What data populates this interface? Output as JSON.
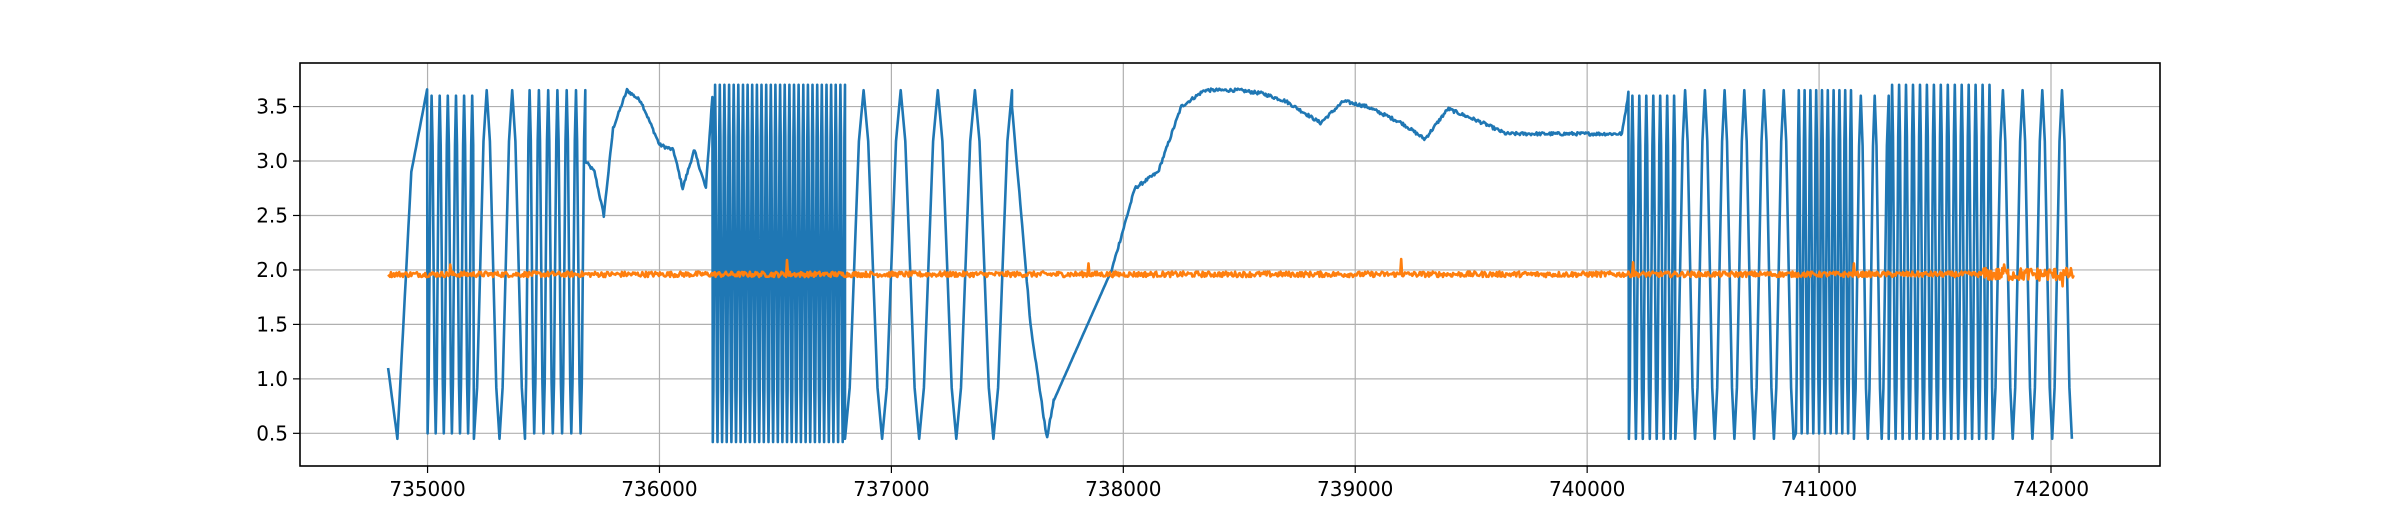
{
  "chart_data": {
    "type": "line",
    "title": "",
    "xlabel": "",
    "ylabel": "",
    "xlim": [
      734450,
      742470
    ],
    "ylim": [
      0.2,
      3.9
    ],
    "grid": true,
    "legend": "none",
    "x_ticks": [
      {
        "value": 735000,
        "label": "735000"
      },
      {
        "value": 736000,
        "label": "736000"
      },
      {
        "value": 737000,
        "label": "737000"
      },
      {
        "value": 738000,
        "label": "738000"
      },
      {
        "value": 739000,
        "label": "739000"
      },
      {
        "value": 740000,
        "label": "740000"
      },
      {
        "value": 741000,
        "label": "741000"
      },
      {
        "value": 742000,
        "label": "742000"
      }
    ],
    "y_ticks": [
      {
        "value": 0.5,
        "label": "0.5"
      },
      {
        "value": 1.0,
        "label": "1.0"
      },
      {
        "value": 1.5,
        "label": "1.5"
      },
      {
        "value": 2.0,
        "label": "2.0"
      },
      {
        "value": 2.5,
        "label": "2.5"
      },
      {
        "value": 3.0,
        "label": "3.0"
      },
      {
        "value": 3.5,
        "label": "3.5"
      }
    ],
    "series": [
      {
        "color": "#1f77b4",
        "x_range": [
          734830,
          742100
        ],
        "segments": [
          {
            "type": "ramp",
            "from": 734830,
            "to": 734870,
            "y0": 1.1,
            "y1": 0.45
          },
          {
            "type": "ramp",
            "from": 734870,
            "to": 734930,
            "y0": 0.45,
            "y1": 2.9
          },
          {
            "type": "ramp",
            "from": 734930,
            "to": 735000,
            "y0": 2.9,
            "y1": 3.68
          },
          {
            "type": "osc",
            "from": 735000,
            "to": 735200,
            "period": 35,
            "lo": 0.5,
            "hi": 3.6
          },
          {
            "type": "osc",
            "from": 735200,
            "to": 735420,
            "period": 110,
            "lo": 0.45,
            "hi": 3.65
          },
          {
            "type": "osc",
            "from": 735420,
            "to": 735680,
            "period": 40,
            "lo": 0.5,
            "hi": 3.65
          },
          {
            "type": "wave",
            "from": 735680,
            "to": 736230,
            "points": [
              [
                735680,
                3.0
              ],
              [
                735720,
                2.9
              ],
              [
                735760,
                2.5
              ],
              [
                735800,
                3.3
              ],
              [
                735860,
                3.65
              ],
              [
                735920,
                3.55
              ],
              [
                736000,
                3.15
              ],
              [
                736060,
                3.1
              ],
              [
                736100,
                2.75
              ],
              [
                736150,
                3.1
              ],
              [
                736200,
                2.75
              ],
              [
                736230,
                3.65
              ]
            ]
          },
          {
            "type": "osc",
            "from": 736230,
            "to": 736800,
            "period": 20,
            "lo": 0.42,
            "hi": 3.7
          },
          {
            "type": "osc",
            "from": 736800,
            "to": 737520,
            "period": 160,
            "lo": 0.45,
            "hi": 3.65
          },
          {
            "type": "wave",
            "from": 737520,
            "to": 737700,
            "points": [
              [
                737520,
                3.5
              ],
              [
                737600,
                1.5
              ],
              [
                737670,
                0.45
              ],
              [
                737700,
                0.8
              ]
            ]
          },
          {
            "type": "ramp",
            "from": 737700,
            "to": 737950,
            "y0": 0.8,
            "y1": 2.0
          },
          {
            "type": "wave",
            "from": 737950,
            "to": 740180,
            "points": [
              [
                737950,
                2.0
              ],
              [
                738050,
                2.75
              ],
              [
                738150,
                2.9
              ],
              [
                738250,
                3.5
              ],
              [
                738350,
                3.65
              ],
              [
                738500,
                3.65
              ],
              [
                738600,
                3.62
              ],
              [
                738700,
                3.55
              ],
              [
                738850,
                3.35
              ],
              [
                738950,
                3.55
              ],
              [
                739050,
                3.5
              ],
              [
                739200,
                3.35
              ],
              [
                739300,
                3.2
              ],
              [
                739400,
                3.48
              ],
              [
                739550,
                3.35
              ],
              [
                739650,
                3.25
              ],
              [
                739800,
                3.25
              ],
              [
                740000,
                3.25
              ],
              [
                740150,
                3.25
              ],
              [
                740180,
                3.65
              ]
            ]
          },
          {
            "type": "osc",
            "from": 740180,
            "to": 740380,
            "period": 30,
            "lo": 0.45,
            "hi": 3.6
          },
          {
            "type": "osc",
            "from": 740380,
            "to": 740900,
            "period": 85,
            "lo": 0.45,
            "hi": 3.65
          },
          {
            "type": "osc",
            "from": 740900,
            "to": 741150,
            "period": 25,
            "lo": 0.5,
            "hi": 3.65
          },
          {
            "type": "osc",
            "from": 741150,
            "to": 741300,
            "period": 60,
            "lo": 0.45,
            "hi": 3.6
          },
          {
            "type": "osc",
            "from": 741300,
            "to": 741750,
            "period": 30,
            "lo": 0.45,
            "hi": 3.7
          },
          {
            "type": "osc",
            "from": 741750,
            "to": 742100,
            "period": 85,
            "lo": 0.45,
            "hi": 3.65
          }
        ]
      },
      {
        "color": "#ff7f0e",
        "x_range": [
          734830,
          742100
        ],
        "baseline": 1.96,
        "noise": 0.025,
        "noise_tail_start": 741700,
        "noise_tail": 0.06,
        "spikes": [
          {
            "x": 735100,
            "y": 2.05
          },
          {
            "x": 736550,
            "y": 2.09
          },
          {
            "x": 737850,
            "y": 2.06
          },
          {
            "x": 739200,
            "y": 2.1
          },
          {
            "x": 740200,
            "y": 2.07
          },
          {
            "x": 741150,
            "y": 2.06
          },
          {
            "x": 741800,
            "y": 2.05
          },
          {
            "x": 742050,
            "y": 1.85
          }
        ]
      }
    ]
  }
}
